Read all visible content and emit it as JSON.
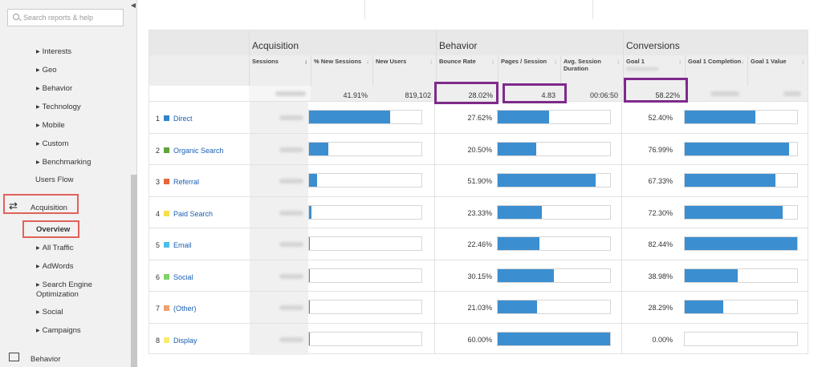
{
  "sidebar": {
    "search_placeholder": "Search reports & help",
    "audience_items": [
      "Interests",
      "Geo",
      "Behavior",
      "Technology",
      "Mobile",
      "Custom",
      "Benchmarking"
    ],
    "users_flow": "Users Flow",
    "acquisition": "Acquisition",
    "overview": "Overview",
    "acquisition_items": [
      "All Traffic",
      "AdWords",
      "Search Engine Optimization",
      "Social",
      "Campaigns"
    ],
    "behavior": "Behavior"
  },
  "table": {
    "groups": {
      "acquisition": "Acquisition",
      "behavior": "Behavior",
      "conversions": "Conversions"
    },
    "columns": {
      "sessions": "Sessions",
      "new_sessions": "% New Sessions",
      "new_users": "New Users",
      "bounce_rate": "Bounce Rate",
      "pages_session": "Pages / Session",
      "avg_duration": "Avg. Session Duration",
      "goal1_rate": "Goal 1",
      "goal1_completion": "Goal 1 Completion",
      "goal1_value": "Goal 1 Value"
    },
    "totals": {
      "new_sessions": "41.91%",
      "new_users": "819,102",
      "bounce_rate": "28.02%",
      "pages_session": "4.83",
      "avg_duration": "00:06:50",
      "goal1_rate": "58.22%"
    },
    "rows": [
      {
        "num": "1",
        "channel": "Direct",
        "color": "#2e86c8",
        "new_sessions_bar": 0.72,
        "bounce_rate": "27.62%",
        "pages_bar": 0.46,
        "goal1_rate": "52.40%",
        "completion_bar": 0.63
      },
      {
        "num": "2",
        "channel": "Organic Search",
        "color": "#5fa33a",
        "new_sessions_bar": 0.17,
        "bounce_rate": "20.50%",
        "pages_bar": 0.34,
        "goal1_rate": "76.99%",
        "completion_bar": 0.93
      },
      {
        "num": "3",
        "channel": "Referral",
        "color": "#e6663c",
        "new_sessions_bar": 0.07,
        "bounce_rate": "51.90%",
        "pages_bar": 0.87,
        "goal1_rate": "67.33%",
        "completion_bar": 0.81
      },
      {
        "num": "4",
        "channel": "Paid Search",
        "color": "#f5e04a",
        "new_sessions_bar": 0.02,
        "bounce_rate": "23.33%",
        "pages_bar": 0.39,
        "goal1_rate": "72.30%",
        "completion_bar": 0.87
      },
      {
        "num": "5",
        "channel": "Email",
        "color": "#4ac0e6",
        "new_sessions_bar": 0.01,
        "bounce_rate": "22.46%",
        "pages_bar": 0.37,
        "goal1_rate": "82.44%",
        "completion_bar": 1.0
      },
      {
        "num": "6",
        "channel": "Social",
        "color": "#7fd36a",
        "new_sessions_bar": 0.005,
        "bounce_rate": "30.15%",
        "pages_bar": 0.5,
        "goal1_rate": "38.98%",
        "completion_bar": 0.47
      },
      {
        "num": "7",
        "channel": "(Other)",
        "color": "#f0a070",
        "new_sessions_bar": 0.003,
        "bounce_rate": "21.03%",
        "pages_bar": 0.35,
        "goal1_rate": "28.29%",
        "completion_bar": 0.34
      },
      {
        "num": "8",
        "channel": "Display",
        "color": "#f7ec6e",
        "new_sessions_bar": 0.001,
        "bounce_rate": "60.00%",
        "pages_bar": 1.0,
        "goal1_rate": "0.00%",
        "completion_bar": 0.0
      }
    ]
  }
}
